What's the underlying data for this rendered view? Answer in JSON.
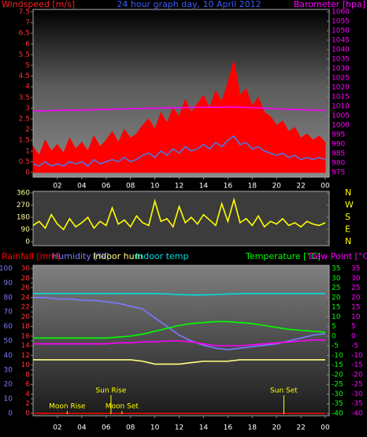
{
  "chart_data": [
    {
      "type": "line",
      "title": "24 hour graph day, 10 April 2012",
      "y_label": "Windspeed [m/s]",
      "y2_label": "Barometer [hpa]",
      "x": [
        0,
        0.5,
        1,
        1.5,
        2,
        2.5,
        3,
        3.5,
        4,
        4.5,
        5,
        5.5,
        6,
        6.5,
        7,
        7.5,
        8,
        8.5,
        9,
        9.5,
        10,
        10.5,
        11,
        11.5,
        12,
        12.5,
        13,
        13.5,
        14,
        14.5,
        15,
        15.5,
        16,
        16.5,
        17,
        17.5,
        18,
        18.5,
        19,
        19.5,
        20,
        20.5,
        21,
        21.5,
        22,
        22.5,
        23,
        23.5,
        24
      ],
      "xlim": [
        0,
        24
      ],
      "xticks": [
        {
          "value": 2,
          "label": "02"
        },
        {
          "value": 4,
          "label": "04"
        },
        {
          "value": 6,
          "label": "06"
        },
        {
          "value": 8,
          "label": "08"
        },
        10,
        12,
        14,
        16,
        18,
        20,
        22,
        {
          "value": 24,
          "label": "00"
        }
      ],
      "ylim": [
        0,
        7.5
      ],
      "yticks": [
        0,
        0.5,
        1,
        1.5,
        2,
        2.5,
        3,
        3.5,
        4,
        4.5,
        5,
        5.5,
        6,
        6.5,
        7,
        7.5
      ],
      "y2lim": [
        975,
        1060
      ],
      "y2ticks": [
        975,
        980,
        985,
        990,
        995,
        1000,
        1005,
        1010,
        1015,
        1020,
        1025,
        1030,
        1035,
        1040,
        1045,
        1050,
        1055,
        1060
      ],
      "series": [
        {
          "color": "#ff0000",
          "style": "area",
          "values": [
            1.2,
            0.8,
            1.5,
            1.0,
            1.3,
            0.9,
            1.6,
            1.1,
            1.4,
            1.0,
            1.7,
            1.2,
            1.5,
            1.9,
            1.4,
            2.0,
            1.6,
            1.8,
            2.2,
            2.5,
            2.0,
            2.8,
            2.3,
            3.0,
            2.6,
            3.4,
            2.8,
            3.2,
            3.6,
            3.0,
            3.8,
            3.3,
            4.2,
            5.2,
            3.6,
            3.9,
            3.1,
            3.5,
            2.8,
            2.6,
            2.2,
            2.4,
            1.9,
            2.1,
            1.6,
            1.8,
            1.5,
            1.7,
            1.4
          ]
        },
        {
          "color": "#4a78e0",
          "values": [
            0.4,
            0.3,
            0.5,
            0.3,
            0.4,
            0.3,
            0.5,
            0.4,
            0.5,
            0.3,
            0.6,
            0.4,
            0.5,
            0.6,
            0.5,
            0.7,
            0.5,
            0.6,
            0.8,
            0.9,
            0.7,
            1.0,
            0.8,
            1.1,
            0.9,
            1.2,
            1.0,
            1.1,
            1.3,
            1.1,
            1.4,
            1.2,
            1.5,
            1.7,
            1.3,
            1.4,
            1.1,
            1.2,
            1.0,
            0.9,
            0.8,
            0.9,
            0.7,
            0.8,
            0.6,
            0.7,
            0.6,
            0.7,
            0.6
          ]
        },
        {
          "color": "#ff00ff",
          "axis": "y2",
          "x": [
            0,
            1,
            2,
            3,
            4,
            5,
            6,
            7,
            8,
            9,
            10,
            11,
            12,
            13,
            14,
            15,
            16,
            17,
            18,
            19,
            20,
            21,
            22,
            23,
            24
          ],
          "values": [
            1007.5,
            1007.6,
            1007.8,
            1008,
            1008,
            1008.2,
            1008.4,
            1008.5,
            1008.7,
            1008.9,
            1009,
            1009.2,
            1009.3,
            1009.4,
            1009.5,
            1009.5,
            1009.6,
            1009.5,
            1009.3,
            1009,
            1008.7,
            1008.4,
            1008.2,
            1008,
            1007.8
          ]
        }
      ]
    },
    {
      "type": "line",
      "x": [
        0,
        0.5,
        1,
        1.5,
        2,
        2.5,
        3,
        3.5,
        4,
        4.5,
        5,
        5.5,
        6,
        6.5,
        7,
        7.5,
        8,
        8.5,
        9,
        9.5,
        10,
        10.5,
        11,
        11.5,
        12,
        12.5,
        13,
        13.5,
        14,
        14.5,
        15,
        15.5,
        16,
        16.5,
        17,
        17.5,
        18,
        18.5,
        19,
        19.5,
        20,
        20.5,
        21,
        21.5,
        22,
        22.5,
        23,
        23.5,
        24
      ],
      "xlim": [
        0,
        24
      ],
      "ylim": [
        0,
        360
      ],
      "yticks": [
        0,
        90,
        180,
        270,
        360
      ],
      "y2lim": [
        0,
        360
      ],
      "y2ticks": [
        {
          "value": 0,
          "label": "N"
        },
        {
          "value": 90,
          "label": "E"
        },
        {
          "value": 180,
          "label": "S"
        },
        {
          "value": 270,
          "label": "W"
        },
        {
          "value": 360,
          "label": "N"
        }
      ],
      "series": [
        {
          "color": "#ffff00",
          "values": [
            120,
            150,
            100,
            200,
            130,
            90,
            170,
            110,
            140,
            180,
            100,
            150,
            120,
            250,
            130,
            160,
            110,
            190,
            140,
            120,
            300,
            150,
            170,
            110,
            260,
            140,
            180,
            130,
            200,
            160,
            120,
            280,
            150,
            310,
            140,
            170,
            120,
            190,
            110,
            150,
            130,
            170,
            120,
            140,
            110,
            150,
            130,
            120,
            140
          ]
        }
      ]
    },
    {
      "type": "line",
      "x": [
        0,
        1,
        2,
        3,
        4,
        5,
        6,
        7,
        8,
        9,
        10,
        11,
        12,
        13,
        14,
        15,
        16,
        17,
        18,
        19,
        20,
        21,
        22,
        23,
        24
      ],
      "xlim": [
        0,
        24
      ],
      "xticks": [
        {
          "value": 2,
          "label": "02"
        },
        {
          "value": 4,
          "label": "04"
        },
        {
          "value": 6,
          "label": "06"
        },
        {
          "value": 8,
          "label": "08"
        },
        10,
        12,
        14,
        16,
        18,
        20,
        22,
        {
          "value": 24,
          "label": "00"
        }
      ],
      "ylim": [
        0,
        100
      ],
      "yticks": [
        0,
        10,
        20,
        30,
        40,
        50,
        60,
        70,
        80,
        90,
        100
      ],
      "y2lim": [
        -40,
        35
      ],
      "y2ticks": [
        35,
        30,
        25,
        20,
        15,
        10,
        5,
        0,
        -5,
        -10,
        -15,
        -20,
        -25,
        -30,
        -35,
        -40
      ],
      "y3lim": [
        0,
        30
      ],
      "y3ticks": [
        0,
        2,
        4,
        6,
        8,
        10,
        12,
        14,
        16,
        18,
        20,
        22,
        24,
        26,
        28,
        30
      ],
      "y4lim": [
        -40,
        35
      ],
      "y4ticks": [
        35,
        30,
        25,
        20,
        15,
        10,
        5,
        0,
        -5,
        -10,
        -15,
        -20,
        -25,
        -30,
        -35,
        -40
      ],
      "series": [
        {
          "name": "Rainfall [mm]",
          "color": "#ff0000",
          "axis": "y3",
          "values": [
            0,
            0,
            0,
            0,
            0,
            0,
            0,
            0,
            0,
            0,
            0,
            0,
            0,
            0,
            0,
            0,
            0,
            0,
            0,
            0,
            0,
            0,
            0,
            0,
            0
          ]
        },
        {
          "name": "Humidity [%]",
          "color": "#7b7bff",
          "values": [
            80,
            80,
            79,
            79,
            78,
            78,
            77,
            76,
            74,
            72,
            66,
            60,
            54,
            50,
            47,
            45,
            44,
            45,
            46,
            47,
            48,
            50,
            52,
            54,
            55
          ]
        },
        {
          "name": "Indoor hum",
          "color": "#ffff80",
          "values": [
            37,
            37,
            37,
            37,
            37,
            37,
            37,
            37,
            37,
            36,
            34,
            34,
            34,
            35,
            36,
            36,
            36,
            37,
            37,
            37,
            37,
            37,
            37,
            37,
            37
          ]
        },
        {
          "name": "Indoor temp",
          "color": "#00e0e0",
          "axis": "y2",
          "values": [
            22,
            22,
            22,
            22,
            22,
            22,
            22,
            22,
            22,
            22,
            22,
            21.8,
            21.5,
            21.3,
            21.3,
            21.5,
            21.8,
            22,
            22,
            22,
            22,
            22,
            22,
            22,
            22
          ]
        },
        {
          "name": "Temperature [°C]",
          "color": "#00ff00",
          "axis": "y2",
          "values": [
            -1,
            -1,
            -1,
            -1,
            -1,
            -1,
            -1,
            -0.5,
            0,
            1,
            2.5,
            4,
            5.5,
            6.5,
            7,
            7.5,
            7.5,
            7,
            6.5,
            5.5,
            4.5,
            3.5,
            3,
            2.5,
            2
          ]
        },
        {
          "name": "Dew Point [°C]",
          "color": "#ff00ff",
          "axis": "y4",
          "values": [
            -4,
            -4,
            -4,
            -4,
            -4,
            -4,
            -4,
            -3.5,
            -3.5,
            -3,
            -3,
            -2.5,
            -2.5,
            -3,
            -4,
            -5,
            -5,
            -5,
            -4.5,
            -4,
            -3.5,
            -3,
            -2.5,
            -2,
            -2
          ]
        }
      ],
      "annotations": [
        {
          "text": "Moon Rise",
          "x": 2.8
        },
        {
          "text": "Sun Rise",
          "x": 6.4
        },
        {
          "text": "Moon Set",
          "x": 7.3
        },
        {
          "text": "Sun Set",
          "x": 20.6
        }
      ]
    }
  ]
}
